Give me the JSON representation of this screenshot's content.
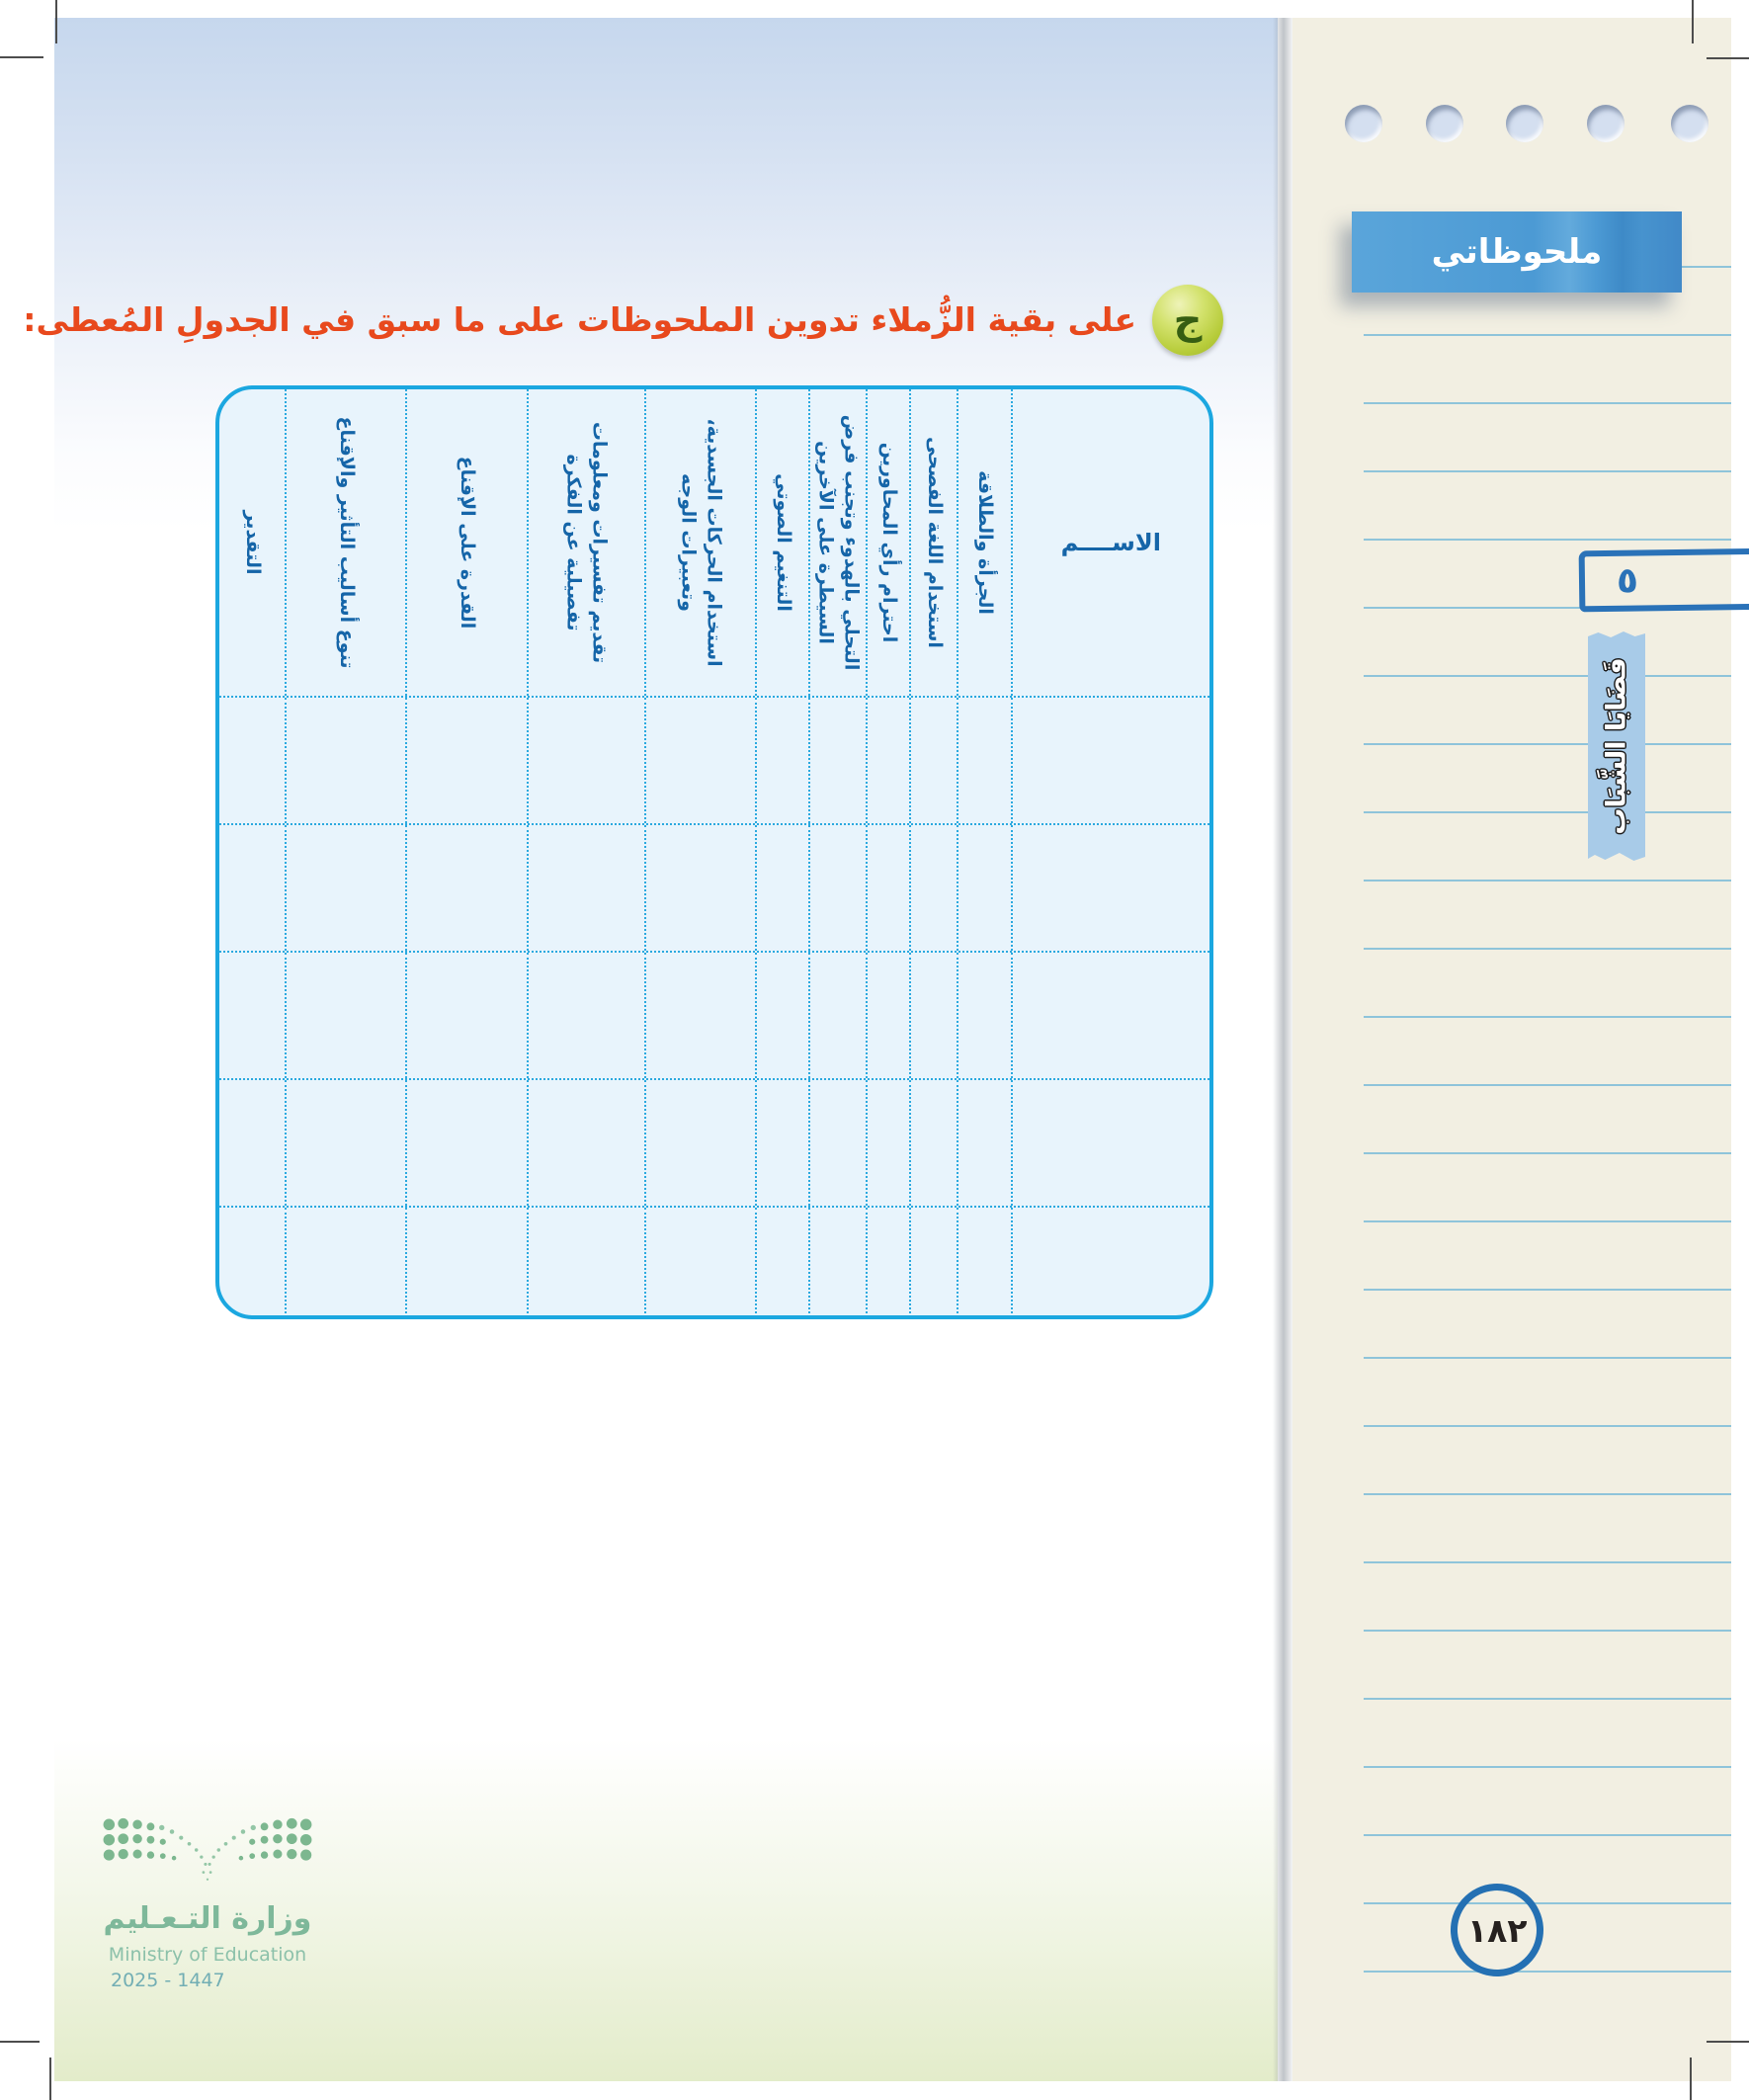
{
  "heading": {
    "marker": "ج",
    "text": "على بقية الزُّملاء تدوين الملحوظات على ما سبق في الجدولِ المُعطى:"
  },
  "table": {
    "columns": [
      "الاســــم",
      "الجرأة والطلاقة",
      "استخدام اللغة الفصحى",
      "احترام رأي المحاورين",
      "التحلي بالهدوء وتجنب فرض السيطرة على الآخرين",
      "التنغيم الصوتي",
      "استخدام الحركات الجسدية، وتعبيرات الوجه",
      "تقديم تفسيرات ومعلومات تفصيلية عن الفكرة",
      "القدرة على الإقناع",
      "تنوع أساليب التأثير والإقناع",
      "التقدير"
    ],
    "empty_rows": 5
  },
  "sidebar": {
    "notes_label": "ملحوظاتي",
    "unit_number": "٥",
    "unit_title": "قَضَايَا الشَّبَاب",
    "page_number": "١٨٢"
  },
  "footer": {
    "ministry_ar": "وزارة التـعـليم",
    "ministry_en": "Ministry of Education",
    "edition_years": "2025 - 1447"
  },
  "colors": {
    "table_border": "#1ba7e0",
    "table_bg": "#e8f4fc",
    "table_text": "#1565a8",
    "heading_red": "#e8491d",
    "tag_blue": "#4c9ad4",
    "sidebar_cream": "#f2efe2",
    "ruled_line": "#8fc4da",
    "hand_drawn_blue": "#2a72b8",
    "tape_blue": "#a8cbe8",
    "marker_green": "#b7cc3a",
    "logo_green": "#7eb89a"
  }
}
